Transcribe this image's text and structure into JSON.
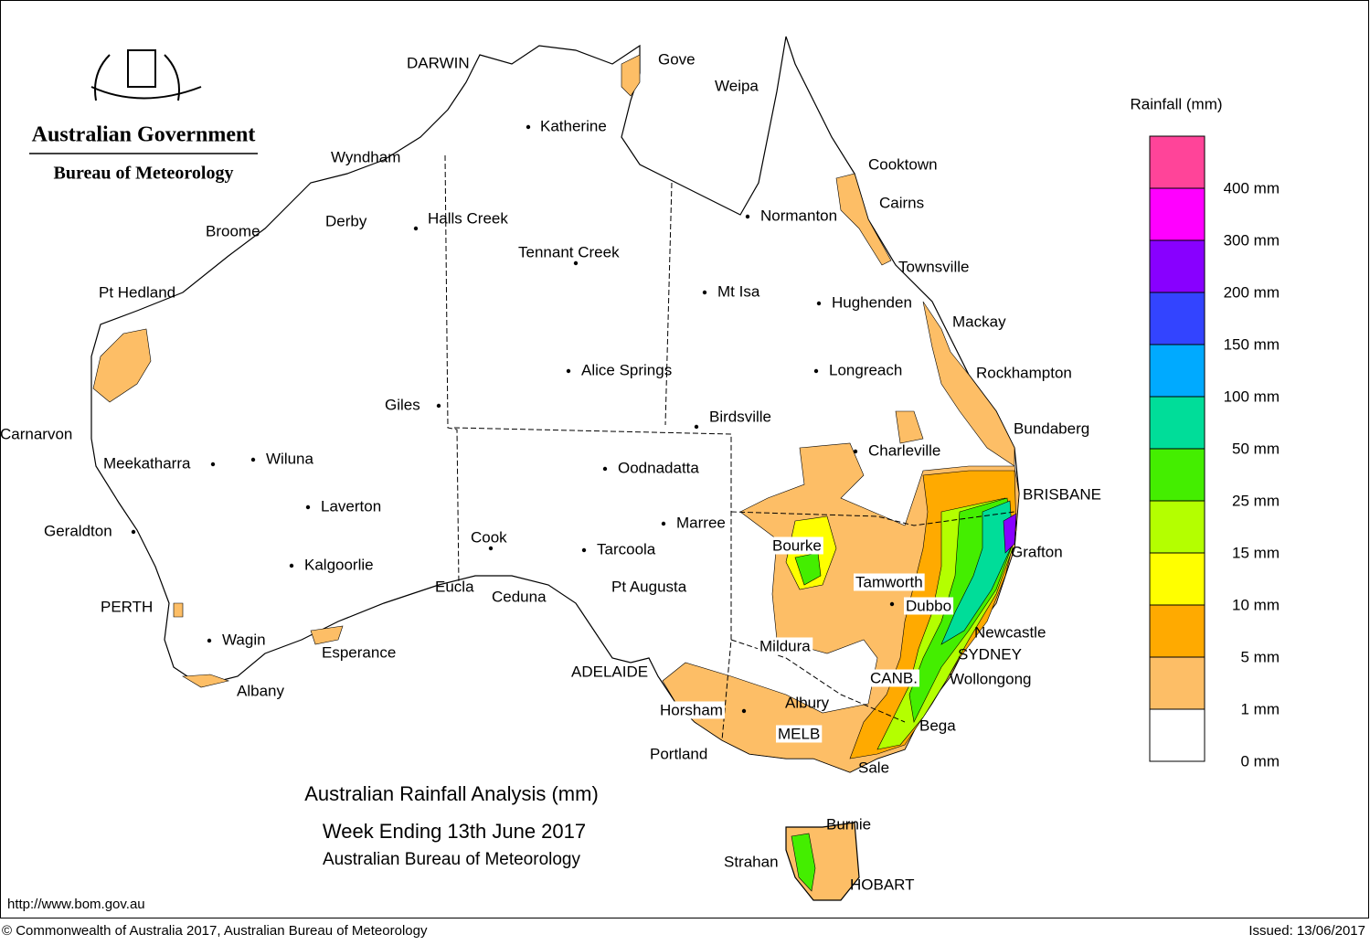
{
  "header": {
    "government": "Australian Government",
    "agency": "Bureau of Meteorology"
  },
  "legend": {
    "title": "Rainfall (mm)",
    "labels": [
      "0 mm",
      "1 mm",
      "5 mm",
      "10 mm",
      "15 mm",
      "25 mm",
      "50 mm",
      "100 mm",
      "150 mm",
      "200 mm",
      "300 mm",
      "400 mm"
    ],
    "colors": [
      "#ffffff",
      "#fdbe66",
      "#ffaa00",
      "#ffff00",
      "#b4ff00",
      "#44ee00",
      "#00dd99",
      "#00aaff",
      "#3344ff",
      "#8800ff",
      "#ff00ff",
      "#ff4499"
    ]
  },
  "places": [
    "DARWIN",
    "Gove",
    "Weipa",
    "Katherine",
    "Wyndham",
    "Cooktown",
    "Cairns",
    "Derby",
    "Halls Creek",
    "Broome",
    "Normanton",
    "Tennant Creek",
    "Townsville",
    "Pt Hedland",
    "Mt Isa",
    "Hughenden",
    "Mackay",
    "Alice Springs",
    "Longreach",
    "Rockhampton",
    "Giles",
    "Birdsville",
    "Bundaberg",
    "Carnarvon",
    "Charleville",
    "Meekatharra",
    "Wiluna",
    "Oodnadatta",
    "BRISBANE",
    "Laverton",
    "Marree",
    "Geraldton",
    "Cook",
    "Bourke",
    "Tarcoola",
    "Grafton",
    "Kalgoorlie",
    "Tamworth",
    "Ceduna",
    "Eucla",
    "Pt Augusta",
    "Dubbo",
    "PERTH",
    "Newcastle",
    "Wagin",
    "Mildura",
    "Esperance",
    "SYDNEY",
    "ADELAIDE",
    "CANB.",
    "Wollongong",
    "Albany",
    "Albury",
    "Horsham",
    "Bega",
    "MELB",
    "Portland",
    "Sale",
    "Burnie",
    "Strahan",
    "HOBART"
  ],
  "title": {
    "line1": "Australian Rainfall Analysis (mm)",
    "line2": "Week Ending 13th June 2017",
    "line3": "Australian Bureau of Meteorology"
  },
  "footer": {
    "url": "http://www.bom.gov.au",
    "copyright": "© Commonwealth of Australia 2017, Australian Bureau of Meteorology",
    "issued": "Issued: 13/06/2017"
  }
}
